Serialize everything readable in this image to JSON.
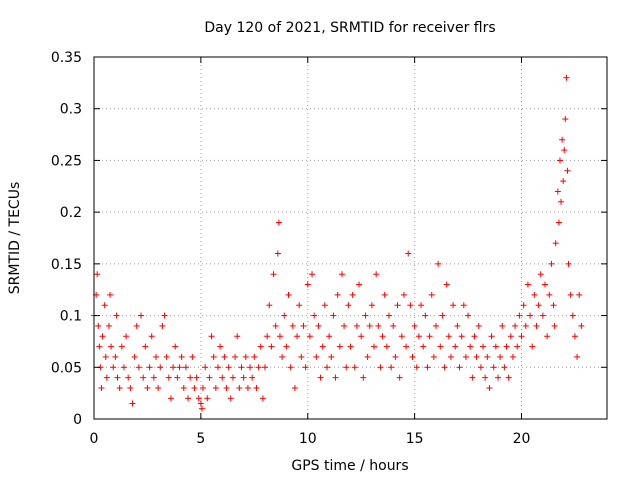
{
  "chart_data": {
    "type": "scatter",
    "title": "Day 120 of 2021, SRMTID for receiver flrs",
    "xlabel": "GPS time / hours",
    "ylabel": "SRMTID / TECUs",
    "xlim": [
      0,
      24
    ],
    "ylim": [
      0,
      0.35
    ],
    "grid": true,
    "marker": "+",
    "series_color": "#ff0000",
    "x_ticks": [
      {
        "value": 0,
        "label": "0"
      },
      {
        "value": 5,
        "label": "5"
      },
      {
        "value": 10,
        "label": "10"
      },
      {
        "value": 15,
        "label": "15"
      },
      {
        "value": 20,
        "label": "20"
      }
    ],
    "y_ticks": [
      {
        "value": 0,
        "label": "0"
      },
      {
        "value": 0.05,
        "label": "0.05"
      },
      {
        "value": 0.1,
        "label": "0.1"
      },
      {
        "value": 0.15,
        "label": "0.15"
      },
      {
        "value": 0.2,
        "label": "0.2"
      },
      {
        "value": 0.25,
        "label": "0.25"
      },
      {
        "value": 0.3,
        "label": "0.3"
      },
      {
        "value": 0.35,
        "label": "0.35"
      }
    ],
    "series": [
      {
        "name": "SRMTID",
        "points": [
          [
            0.0,
            0.1
          ],
          [
            0.1,
            0.12
          ],
          [
            0.15,
            0.14
          ],
          [
            0.2,
            0.09
          ],
          [
            0.25,
            0.07
          ],
          [
            0.3,
            0.05
          ],
          [
            0.35,
            0.03
          ],
          [
            0.4,
            0.08
          ],
          [
            0.5,
            0.11
          ],
          [
            0.55,
            0.06
          ],
          [
            0.6,
            0.04
          ],
          [
            0.7,
            0.09
          ],
          [
            0.75,
            0.12
          ],
          [
            0.8,
            0.07
          ],
          [
            0.9,
            0.05
          ],
          [
            1.0,
            0.06
          ],
          [
            1.05,
            0.1
          ],
          [
            1.1,
            0.04
          ],
          [
            1.2,
            0.03
          ],
          [
            1.3,
            0.07
          ],
          [
            1.4,
            0.05
          ],
          [
            1.5,
            0.08
          ],
          [
            1.6,
            0.04
          ],
          [
            1.7,
            0.03
          ],
          [
            1.8,
            0.015
          ],
          [
            1.9,
            0.06
          ],
          [
            2.0,
            0.09
          ],
          [
            2.1,
            0.05
          ],
          [
            2.2,
            0.1
          ],
          [
            2.3,
            0.04
          ],
          [
            2.4,
            0.07
          ],
          [
            2.5,
            0.03
          ],
          [
            2.6,
            0.05
          ],
          [
            2.7,
            0.08
          ],
          [
            2.8,
            0.04
          ],
          [
            2.9,
            0.06
          ],
          [
            3.0,
            0.03
          ],
          [
            3.1,
            0.05
          ],
          [
            3.2,
            0.09
          ],
          [
            3.3,
            0.1
          ],
          [
            3.4,
            0.06
          ],
          [
            3.5,
            0.04
          ],
          [
            3.6,
            0.02
          ],
          [
            3.7,
            0.05
          ],
          [
            3.8,
            0.07
          ],
          [
            3.9,
            0.04
          ],
          [
            4.0,
            0.05
          ],
          [
            4.1,
            0.06
          ],
          [
            4.2,
            0.03
          ],
          [
            4.3,
            0.05
          ],
          [
            4.4,
            0.02
          ],
          [
            4.5,
            0.04
          ],
          [
            4.6,
            0.06
          ],
          [
            4.7,
            0.03
          ],
          [
            4.8,
            0.04
          ],
          [
            4.9,
            0.02
          ],
          [
            5.0,
            0.015
          ],
          [
            5.05,
            0.01
          ],
          [
            5.1,
            0.03
          ],
          [
            5.2,
            0.05
          ],
          [
            5.3,
            0.02
          ],
          [
            5.4,
            0.04
          ],
          [
            5.5,
            0.08
          ],
          [
            5.6,
            0.06
          ],
          [
            5.7,
            0.03
          ],
          [
            5.8,
            0.05
          ],
          [
            5.9,
            0.07
          ],
          [
            6.0,
            0.04
          ],
          [
            6.1,
            0.06
          ],
          [
            6.2,
            0.03
          ],
          [
            6.3,
            0.05
          ],
          [
            6.4,
            0.02
          ],
          [
            6.5,
            0.04
          ],
          [
            6.6,
            0.06
          ],
          [
            6.7,
            0.08
          ],
          [
            6.8,
            0.03
          ],
          [
            6.9,
            0.05
          ],
          [
            7.0,
            0.04
          ],
          [
            7.1,
            0.06
          ],
          [
            7.2,
            0.03
          ],
          [
            7.3,
            0.05
          ],
          [
            7.4,
            0.04
          ],
          [
            7.5,
            0.06
          ],
          [
            7.6,
            0.03
          ],
          [
            7.7,
            0.05
          ],
          [
            7.8,
            0.07
          ],
          [
            7.9,
            0.02
          ],
          [
            8.0,
            0.05
          ],
          [
            8.1,
            0.08
          ],
          [
            8.2,
            0.11
          ],
          [
            8.3,
            0.07
          ],
          [
            8.4,
            0.14
          ],
          [
            8.5,
            0.09
          ],
          [
            8.6,
            0.16
          ],
          [
            8.65,
            0.19
          ],
          [
            8.7,
            0.08
          ],
          [
            8.8,
            0.06
          ],
          [
            8.9,
            0.1
          ],
          [
            9.0,
            0.07
          ],
          [
            9.1,
            0.12
          ],
          [
            9.2,
            0.05
          ],
          [
            9.3,
            0.09
          ],
          [
            9.4,
            0.03
          ],
          [
            9.5,
            0.08
          ],
          [
            9.6,
            0.11
          ],
          [
            9.7,
            0.06
          ],
          [
            9.8,
            0.09
          ],
          [
            9.9,
            0.05
          ],
          [
            10.0,
            0.13
          ],
          [
            10.1,
            0.08
          ],
          [
            10.2,
            0.14
          ],
          [
            10.3,
            0.1
          ],
          [
            10.4,
            0.06
          ],
          [
            10.5,
            0.09
          ],
          [
            10.6,
            0.04
          ],
          [
            10.7,
            0.07
          ],
          [
            10.8,
            0.11
          ],
          [
            10.9,
            0.05
          ],
          [
            11.0,
            0.08
          ],
          [
            11.1,
            0.06
          ],
          [
            11.2,
            0.1
          ],
          [
            11.3,
            0.04
          ],
          [
            11.4,
            0.12
          ],
          [
            11.5,
            0.07
          ],
          [
            11.6,
            0.14
          ],
          [
            11.7,
            0.09
          ],
          [
            11.8,
            0.05
          ],
          [
            11.9,
            0.11
          ],
          [
            12.0,
            0.07
          ],
          [
            12.1,
            0.12
          ],
          [
            12.2,
            0.05
          ],
          [
            12.3,
            0.09
          ],
          [
            12.4,
            0.13
          ],
          [
            12.5,
            0.08
          ],
          [
            12.6,
            0.04
          ],
          [
            12.7,
            0.1
          ],
          [
            12.8,
            0.06
          ],
          [
            12.9,
            0.09
          ],
          [
            13.0,
            0.11
          ],
          [
            13.1,
            0.07
          ],
          [
            13.2,
            0.14
          ],
          [
            13.3,
            0.09
          ],
          [
            13.4,
            0.05
          ],
          [
            13.5,
            0.08
          ],
          [
            13.6,
            0.12
          ],
          [
            13.7,
            0.07
          ],
          [
            13.8,
            0.1
          ],
          [
            13.9,
            0.05
          ],
          [
            14.0,
            0.09
          ],
          [
            14.1,
            0.06
          ],
          [
            14.2,
            0.11
          ],
          [
            14.3,
            0.04
          ],
          [
            14.4,
            0.08
          ],
          [
            14.5,
            0.12
          ],
          [
            14.6,
            0.07
          ],
          [
            14.7,
            0.16
          ],
          [
            14.8,
            0.11
          ],
          [
            14.9,
            0.06
          ],
          [
            15.0,
            0.09
          ],
          [
            15.1,
            0.05
          ],
          [
            15.2,
            0.08
          ],
          [
            15.3,
            0.11
          ],
          [
            15.4,
            0.07
          ],
          [
            15.5,
            0.1
          ],
          [
            15.6,
            0.05
          ],
          [
            15.7,
            0.08
          ],
          [
            15.8,
            0.12
          ],
          [
            15.9,
            0.06
          ],
          [
            16.0,
            0.09
          ],
          [
            16.1,
            0.15
          ],
          [
            16.2,
            0.07
          ],
          [
            16.3,
            0.1
          ],
          [
            16.4,
            0.05
          ],
          [
            16.5,
            0.13
          ],
          [
            16.6,
            0.08
          ],
          [
            16.7,
            0.06
          ],
          [
            16.8,
            0.11
          ],
          [
            16.9,
            0.07
          ],
          [
            17.0,
            0.09
          ],
          [
            17.1,
            0.05
          ],
          [
            17.2,
            0.08
          ],
          [
            17.3,
            0.11
          ],
          [
            17.4,
            0.06
          ],
          [
            17.5,
            0.1
          ],
          [
            17.6,
            0.07
          ],
          [
            17.7,
            0.04
          ],
          [
            17.8,
            0.08
          ],
          [
            17.9,
            0.06
          ],
          [
            18.0,
            0.09
          ],
          [
            18.1,
            0.05
          ],
          [
            18.2,
            0.07
          ],
          [
            18.3,
            0.04
          ],
          [
            18.4,
            0.06
          ],
          [
            18.5,
            0.03
          ],
          [
            18.6,
            0.08
          ],
          [
            18.7,
            0.05
          ],
          [
            18.8,
            0.07
          ],
          [
            18.9,
            0.04
          ],
          [
            19.0,
            0.06
          ],
          [
            19.1,
            0.09
          ],
          [
            19.2,
            0.05
          ],
          [
            19.3,
            0.07
          ],
          [
            19.4,
            0.04
          ],
          [
            19.5,
            0.08
          ],
          [
            19.6,
            0.06
          ],
          [
            19.7,
            0.09
          ],
          [
            19.8,
            0.07
          ],
          [
            19.9,
            0.1
          ],
          [
            20.0,
            0.08
          ],
          [
            20.1,
            0.11
          ],
          [
            20.2,
            0.09
          ],
          [
            20.3,
            0.13
          ],
          [
            20.4,
            0.1
          ],
          [
            20.5,
            0.07
          ],
          [
            20.6,
            0.12
          ],
          [
            20.7,
            0.09
          ],
          [
            20.8,
            0.11
          ],
          [
            20.9,
            0.14
          ],
          [
            21.0,
            0.1
          ],
          [
            21.1,
            0.13
          ],
          [
            21.2,
            0.08
          ],
          [
            21.3,
            0.12
          ],
          [
            21.4,
            0.15
          ],
          [
            21.5,
            0.11
          ],
          [
            21.55,
            0.09
          ],
          [
            21.6,
            0.17
          ],
          [
            21.7,
            0.22
          ],
          [
            21.75,
            0.19
          ],
          [
            21.8,
            0.25
          ],
          [
            21.85,
            0.21
          ],
          [
            21.9,
            0.27
          ],
          [
            21.95,
            0.23
          ],
          [
            22.0,
            0.26
          ],
          [
            22.05,
            0.29
          ],
          [
            22.1,
            0.33
          ],
          [
            22.15,
            0.24
          ],
          [
            22.2,
            0.15
          ],
          [
            22.3,
            0.12
          ],
          [
            22.4,
            0.1
          ],
          [
            22.5,
            0.08
          ],
          [
            22.6,
            0.06
          ],
          [
            22.7,
            0.12
          ],
          [
            22.8,
            0.09
          ]
        ]
      }
    ]
  }
}
